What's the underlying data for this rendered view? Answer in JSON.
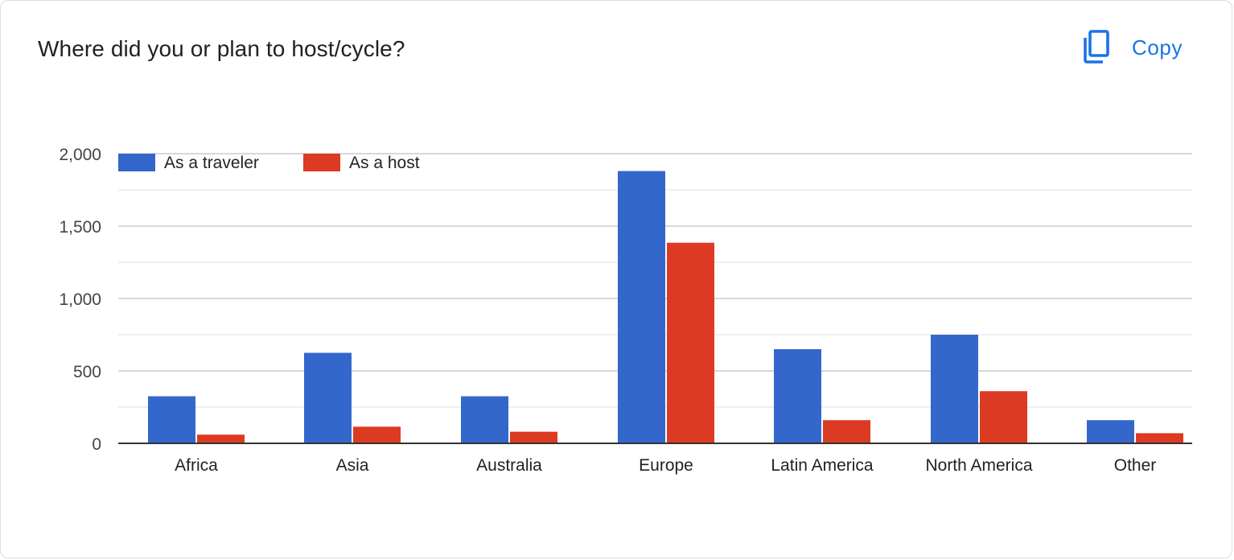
{
  "card": {
    "title": "Where did you or plan to host/cycle?",
    "copy_label": "Copy",
    "copy_icon": "copy-icon"
  },
  "colors": {
    "accent": "#1a73e8",
    "series_traveler": "#3367cc",
    "series_host": "#dc3a22",
    "gridline": "#cccccc",
    "minor_gridline": "#eaeaea",
    "baseline": "#333333"
  },
  "chart_data": {
    "type": "bar",
    "title": "Where did you or plan to host/cycle?",
    "xlabel": "",
    "ylabel": "",
    "categories": [
      "Africa",
      "Asia",
      "Australia",
      "Europe",
      "Latin America",
      "North America",
      "Other"
    ],
    "series": [
      {
        "name": "As a traveler",
        "color": "#3367cc",
        "values": [
          325,
          625,
          325,
          1880,
          650,
          750,
          160
        ]
      },
      {
        "name": "As a host",
        "color": "#dc3a22",
        "values": [
          60,
          115,
          80,
          1385,
          160,
          360,
          70
        ]
      }
    ],
    "ylim": [
      0,
      2000
    ],
    "yticks": [
      0,
      500,
      1000,
      1500,
      2000
    ],
    "ytick_labels": [
      "0",
      "500",
      "1,000",
      "1,500",
      "2,000"
    ],
    "minor_gridlines": true,
    "grid": true,
    "legend_position": "top-left"
  }
}
